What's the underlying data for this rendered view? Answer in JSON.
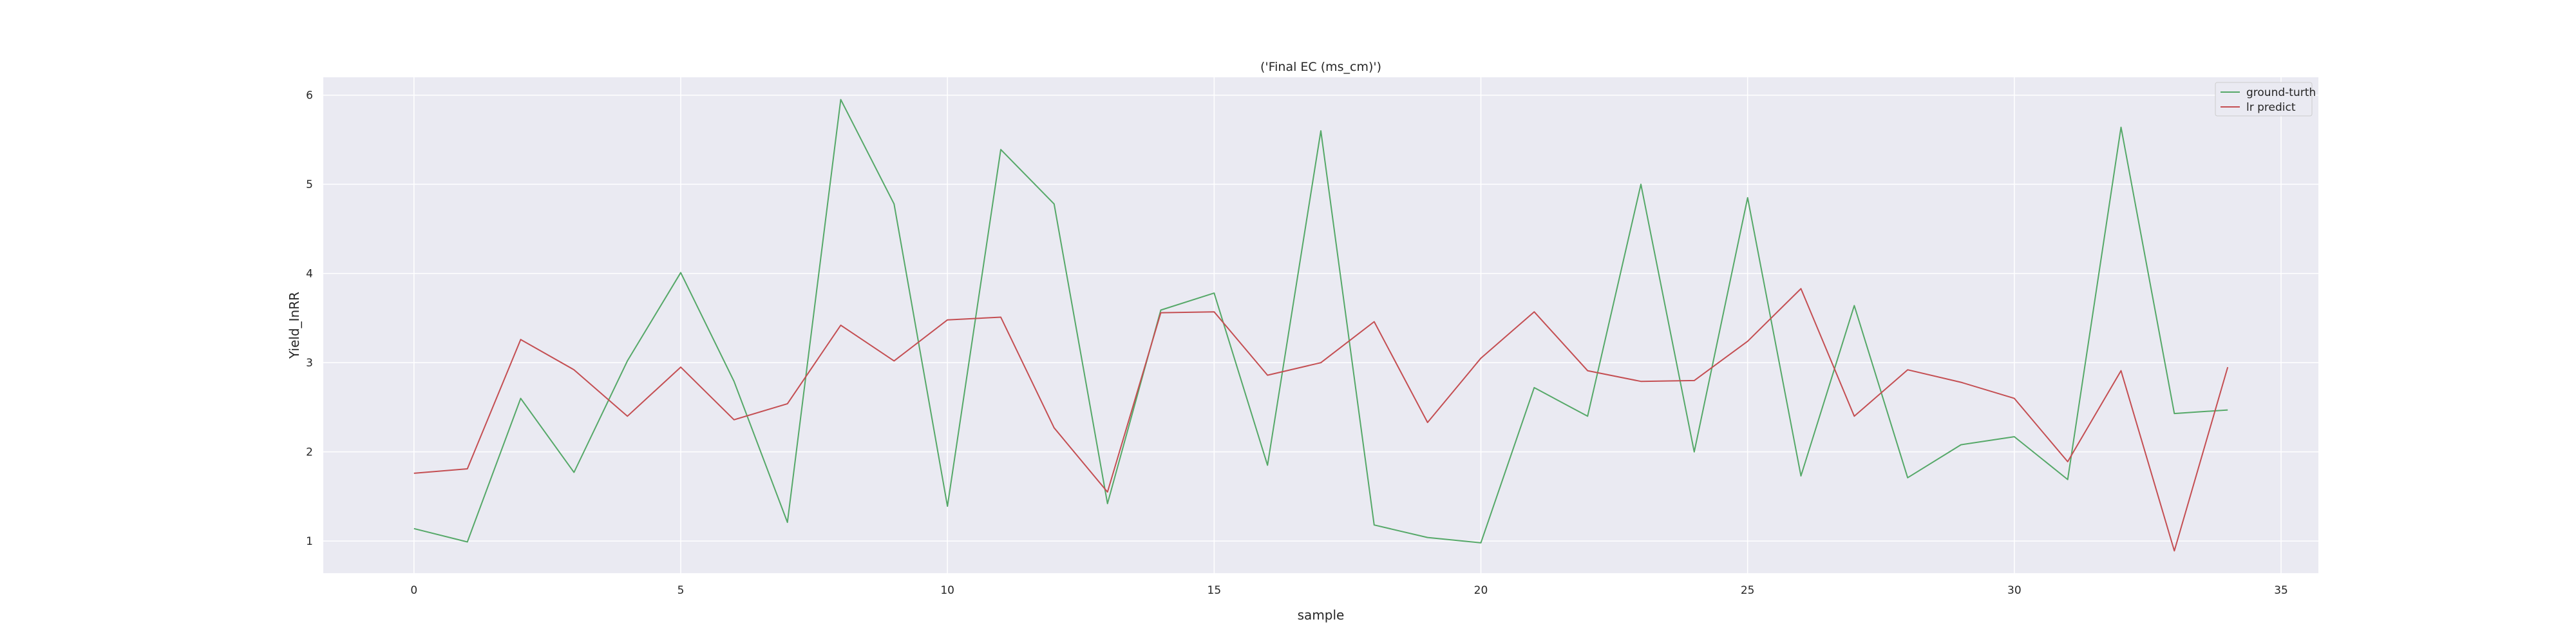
{
  "chart_data": {
    "type": "line",
    "title": "('Final EC (ms_cm)')",
    "xlabel": "sample",
    "ylabel": "Yield_InRR",
    "xlim": [
      -1.7,
      35.7
    ],
    "ylim": [
      0.64,
      6.2
    ],
    "xticks": [
      0,
      5,
      10,
      15,
      20,
      25,
      30,
      35
    ],
    "yticks": [
      1,
      2,
      3,
      4,
      5,
      6
    ],
    "grid": true,
    "legend_position": "top-right",
    "x": [
      0,
      1,
      2,
      3,
      4,
      5,
      6,
      7,
      8,
      9,
      10,
      11,
      12,
      13,
      14,
      15,
      16,
      17,
      18,
      19,
      20,
      21,
      22,
      23,
      24,
      25,
      26,
      27,
      28,
      29,
      30,
      31,
      32,
      33,
      34
    ],
    "series": [
      {
        "name": "ground-turth",
        "color": "#55a868",
        "values": [
          1.14,
          0.99,
          2.6,
          1.77,
          3.02,
          4.01,
          2.79,
          1.21,
          5.95,
          4.78,
          1.39,
          5.39,
          4.78,
          1.42,
          3.59,
          3.78,
          1.85,
          5.6,
          1.18,
          1.04,
          0.98,
          2.72,
          2.4,
          5.0,
          2.0,
          4.85,
          1.73,
          3.64,
          1.71,
          2.08,
          2.17,
          1.69,
          5.64,
          2.43,
          2.47
        ]
      },
      {
        "name": "lr predict",
        "color": "#c44e52",
        "values": [
          1.76,
          1.81,
          3.26,
          2.92,
          2.4,
          2.95,
          2.36,
          2.54,
          3.42,
          3.02,
          3.48,
          3.51,
          2.27,
          1.55,
          3.56,
          3.57,
          2.86,
          3.0,
          3.46,
          2.33,
          3.05,
          3.57,
          2.91,
          2.79,
          2.8,
          3.24,
          3.83,
          2.4,
          2.92,
          2.78,
          2.6,
          1.89,
          2.91,
          0.89,
          2.95
        ]
      }
    ]
  }
}
